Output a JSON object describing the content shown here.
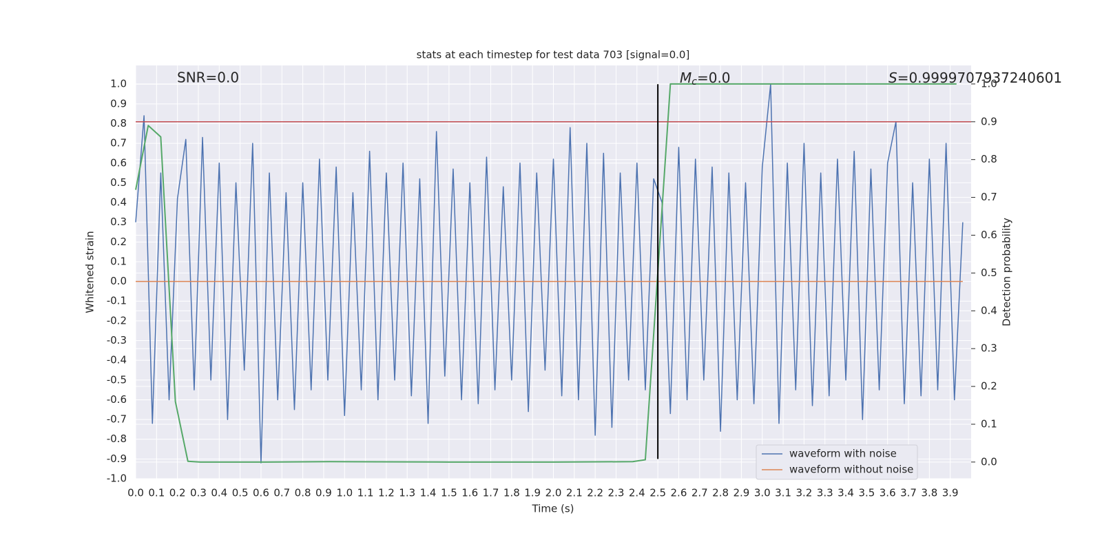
{
  "chart_data": {
    "type": "line",
    "title": "stats at each timestep for test data 703 [signal=0.0]",
    "xlabel": "Time (s)",
    "ylabel": "Whitened strain",
    "y2label": "Detection probability",
    "xlim": [
      0,
      4.0
    ],
    "ylim": [
      -1.0,
      1.095
    ],
    "y2lim": [
      -0.044,
      1.049
    ],
    "xticks": [
      {
        "value": 0,
        "label": "0.0"
      },
      0.1,
      0.2,
      0.3,
      0.4,
      0.5,
      0.6,
      0.7,
      0.8,
      0.9,
      {
        "value": 1,
        "label": "1.0"
      },
      1.1,
      1.2,
      1.3,
      1.4,
      1.5,
      1.6,
      1.7,
      1.8,
      1.9,
      {
        "value": 2,
        "label": "2.0"
      },
      2.1,
      2.2,
      2.3,
      2.4,
      2.5,
      2.6,
      2.7,
      2.8,
      2.9,
      {
        "value": 3,
        "label": "3.0"
      },
      3.1,
      3.2,
      3.3,
      3.4,
      3.5,
      3.6,
      3.7,
      3.8,
      3.9
    ],
    "yticks": [
      {
        "value": -1,
        "label": "-1.0"
      },
      -0.9,
      -0.8,
      -0.7,
      -0.6,
      -0.5,
      -0.4,
      -0.3,
      -0.2,
      -0.1,
      {
        "value": 0,
        "label": "0.0"
      },
      0.1,
      0.2,
      0.3,
      0.4,
      0.5,
      0.6,
      0.7,
      0.8,
      0.9,
      {
        "value": 1,
        "label": "1.0"
      }
    ],
    "y2ticks": [
      {
        "value": 0,
        "label": "0.0"
      },
      0.1,
      0.2,
      0.3,
      0.4,
      0.5,
      0.6,
      0.7,
      0.8,
      0.9,
      {
        "value": 1,
        "label": "1.0"
      }
    ],
    "grid": true,
    "legend": "lower right",
    "x": [
      0,
      0.04,
      0.08,
      0.12,
      0.16,
      0.2,
      0.24,
      0.28,
      0.32,
      0.36,
      0.4,
      0.44,
      0.48,
      0.52,
      0.56,
      0.6,
      0.64,
      0.68,
      0.72,
      0.76,
      0.8,
      0.84,
      0.88,
      0.92,
      0.96,
      1,
      1.04,
      1.08,
      1.12,
      1.16,
      1.2,
      1.24,
      1.28,
      1.32,
      1.36,
      1.4,
      1.44,
      1.48,
      1.52,
      1.56,
      1.6,
      1.64,
      1.68,
      1.72,
      1.76,
      1.8,
      1.84,
      1.88,
      1.92,
      1.96,
      2,
      2.04,
      2.08,
      2.12,
      2.16,
      2.2,
      2.24,
      2.28,
      2.32,
      2.36,
      2.4,
      2.44,
      2.48,
      2.52,
      2.56,
      2.6,
      2.64,
      2.68,
      2.72,
      2.76,
      2.8,
      2.84,
      2.88,
      2.92,
      2.96,
      3,
      3.04,
      3.08,
      3.12,
      3.16,
      3.2,
      3.24,
      3.28,
      3.32,
      3.36,
      3.4,
      3.44,
      3.48,
      3.52,
      3.56,
      3.6,
      3.64,
      3.68,
      3.72,
      3.76,
      3.8,
      3.84,
      3.88,
      3.92,
      3.96
    ],
    "series": [
      {
        "name": "waveform with noise",
        "color": "#4c72b0",
        "values": [
          0.3,
          0.84,
          -0.72,
          0.55,
          -0.6,
          0.42,
          0.72,
          -0.55,
          0.73,
          -0.5,
          0.6,
          -0.7,
          0.5,
          -0.45,
          0.7,
          -0.92,
          0.55,
          -0.6,
          0.45,
          -0.65,
          0.5,
          -0.55,
          0.62,
          -0.5,
          0.58,
          -0.68,
          0.45,
          -0.55,
          0.66,
          -0.6,
          0.55,
          -0.5,
          0.6,
          -0.58,
          0.52,
          -0.72,
          0.76,
          -0.48,
          0.57,
          -0.6,
          0.5,
          -0.62,
          0.63,
          -0.55,
          0.48,
          -0.5,
          0.6,
          -0.66,
          0.55,
          -0.45,
          0.62,
          -0.58,
          0.78,
          -0.6,
          0.7,
          -0.78,
          0.65,
          -0.74,
          0.55,
          -0.5,
          0.6,
          -0.55,
          0.52,
          0.4,
          -0.67,
          0.68,
          -0.6,
          0.62,
          -0.5,
          0.58,
          -0.76,
          0.55,
          -0.6,
          0.5,
          -0.62,
          0.58,
          1.0,
          -0.72,
          0.6,
          -0.55,
          0.7,
          -0.63,
          0.55,
          -0.58,
          0.62,
          -0.5,
          0.66,
          -0.7,
          0.57,
          -0.55,
          0.6,
          0.81,
          -0.62,
          0.5,
          -0.58,
          0.62,
          -0.55,
          0.7,
          -0.6,
          0.3
        ]
      },
      {
        "name": "waveform without noise",
        "color": "#dd8452",
        "values": [
          0,
          0,
          0,
          0,
          0,
          0,
          0,
          0,
          0,
          0,
          0,
          0,
          0,
          0,
          0,
          0,
          0,
          0,
          0,
          0,
          0,
          0,
          0,
          0,
          0,
          0,
          0,
          0,
          0,
          0,
          0,
          0,
          0,
          0,
          0,
          0,
          0,
          0,
          0,
          0,
          0,
          0,
          0,
          0,
          0,
          0,
          0,
          0,
          0,
          0,
          0,
          0,
          0,
          0,
          0,
          0,
          0,
          0,
          0,
          0,
          0,
          0,
          0,
          0,
          0,
          0,
          0,
          0,
          0,
          0,
          0,
          0,
          0,
          0,
          0,
          0,
          0,
          0,
          0,
          0,
          0,
          0,
          0,
          0,
          0,
          0,
          0,
          0,
          0,
          0,
          0,
          0,
          0,
          0,
          0,
          0,
          0,
          0,
          0,
          0
        ]
      }
    ],
    "probability": {
      "color": "#55a868",
      "axis": "y2",
      "x": [
        0,
        0.06,
        0.12,
        0.19,
        0.25,
        0.31,
        0.62,
        0.93,
        1.5,
        2.0,
        2.38,
        2.44,
        2.56,
        3.93
      ],
      "values": [
        0.72,
        0.89,
        0.86,
        0.16,
        0.002,
        0,
        0,
        0.001,
        0,
        0,
        0.001,
        0.006,
        1.0,
        1.0
      ]
    },
    "threshold": {
      "value": 0.9,
      "axis": "y2",
      "color": "#c44e52"
    },
    "marker": {
      "x": 2.5,
      "from": -0.9,
      "to": 1.0,
      "color": "#000000"
    },
    "annotations": {
      "snr": "SNR=0.0",
      "mc": {
        "symbol": "M",
        "subscript": "c",
        "text": "=0.0"
      },
      "s": {
        "symbol": "S",
        "text": "=0.9999707937240601"
      }
    }
  }
}
